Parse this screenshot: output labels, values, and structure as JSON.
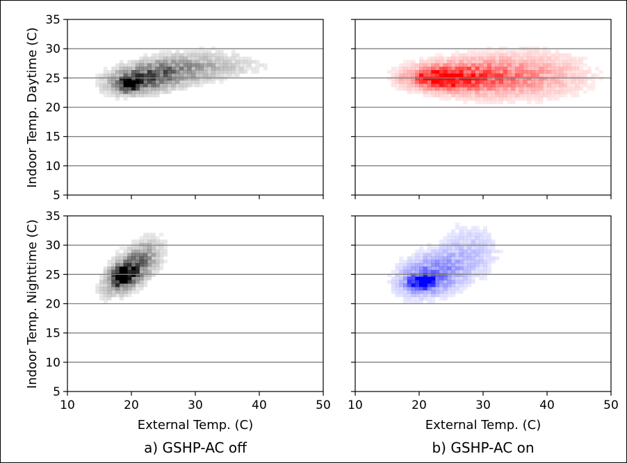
{
  "figure": {
    "panel_captions": [
      "a) GSHP-AC off",
      "b) GSHP-AC on"
    ],
    "xlabel": "External Temp. (C)",
    "row_ylabels": [
      "Indoor Temp. Daytime (C)",
      "Indoor Temp. Nighttime (C)"
    ]
  },
  "chart_data": [
    {
      "type": "heatmap",
      "panel": "a-top",
      "ylabel": "Indoor Temp. Daytime (C)",
      "xlabel": "",
      "xlim": [
        10,
        50
      ],
      "ylim": [
        5,
        35
      ],
      "xticks": [
        10,
        20,
        30,
        40,
        50
      ],
      "yticks": [
        5,
        10,
        15,
        20,
        25,
        30,
        35
      ],
      "show_xticklabels": false,
      "show_yticklabels": true,
      "grid_y": true,
      "color": "#000000",
      "clusters": [
        {
          "x": 19.5,
          "y": 24.0,
          "sx": 1.1,
          "sy": 0.8,
          "w": 1.0,
          "rho": 0.1
        },
        {
          "x": 22,
          "y": 25,
          "sx": 3.5,
          "sy": 1.6,
          "w": 0.55,
          "rho": 0.3
        },
        {
          "x": 28,
          "y": 26.5,
          "sx": 4.5,
          "sy": 1.8,
          "w": 0.28,
          "rho": 0.3
        },
        {
          "x": 36,
          "y": 27,
          "sx": 4.0,
          "sy": 1.3,
          "w": 0.08,
          "rho": 0.1
        }
      ]
    },
    {
      "type": "heatmap",
      "panel": "b-top",
      "ylabel": "",
      "xlabel": "",
      "xlim": [
        10,
        50
      ],
      "ylim": [
        5,
        35
      ],
      "xticks": [
        10,
        20,
        30,
        40,
        50
      ],
      "yticks": [
        5,
        10,
        15,
        20,
        25,
        30,
        35
      ],
      "show_xticklabels": false,
      "show_yticklabels": false,
      "grid_y": true,
      "color": "#ff0000",
      "clusters": [
        {
          "x": 23.5,
          "y": 25.0,
          "sx": 3.0,
          "sy": 1.0,
          "w": 1.0,
          "rho": 0.0
        },
        {
          "x": 28,
          "y": 25.2,
          "sx": 5.5,
          "sy": 1.8,
          "w": 0.55,
          "rho": 0.0
        },
        {
          "x": 37,
          "y": 25.5,
          "sx": 6.0,
          "sy": 2.5,
          "w": 0.25,
          "rho": 0.0
        }
      ]
    },
    {
      "type": "heatmap",
      "panel": "a-bottom",
      "ylabel": "Indoor Temp. Nighttime (C)",
      "xlabel": "External Temp. (C)",
      "xlim": [
        10,
        50
      ],
      "ylim": [
        5,
        35
      ],
      "xticks": [
        10,
        20,
        30,
        40,
        50
      ],
      "yticks": [
        5,
        10,
        15,
        20,
        25,
        30,
        35
      ],
      "show_xticklabels": true,
      "show_yticklabels": true,
      "grid_y": true,
      "color": "#000000",
      "clusters": [
        {
          "x": 18.8,
          "y": 24.8,
          "sx": 1.1,
          "sy": 1.1,
          "w": 1.0,
          "rho": 0.3
        },
        {
          "x": 19.5,
          "y": 25.5,
          "sx": 2.3,
          "sy": 2.3,
          "w": 0.55,
          "rho": 0.55
        },
        {
          "x": 22,
          "y": 28,
          "sx": 2.0,
          "sy": 2.5,
          "w": 0.15,
          "rho": 0.3
        }
      ]
    },
    {
      "type": "heatmap",
      "panel": "b-bottom",
      "ylabel": "",
      "xlabel": "External Temp. (C)",
      "xlim": [
        10,
        50
      ],
      "ylim": [
        5,
        35
      ],
      "xticks": [
        10,
        20,
        30,
        40,
        50
      ],
      "yticks": [
        5,
        10,
        15,
        20,
        25,
        30,
        35
      ],
      "show_xticklabels": true,
      "show_yticklabels": false,
      "grid_y": true,
      "color": "#0000ff",
      "clusters": [
        {
          "x": 20.5,
          "y": 23.8,
          "sx": 1.4,
          "sy": 0.9,
          "w": 1.0,
          "rho": 0.1
        },
        {
          "x": 22,
          "y": 25,
          "sx": 3.2,
          "sy": 2.3,
          "w": 0.45,
          "rho": 0.25
        },
        {
          "x": 28,
          "y": 29,
          "sx": 3.0,
          "sy": 3.0,
          "w": 0.14,
          "rho": 0.0
        }
      ]
    }
  ]
}
